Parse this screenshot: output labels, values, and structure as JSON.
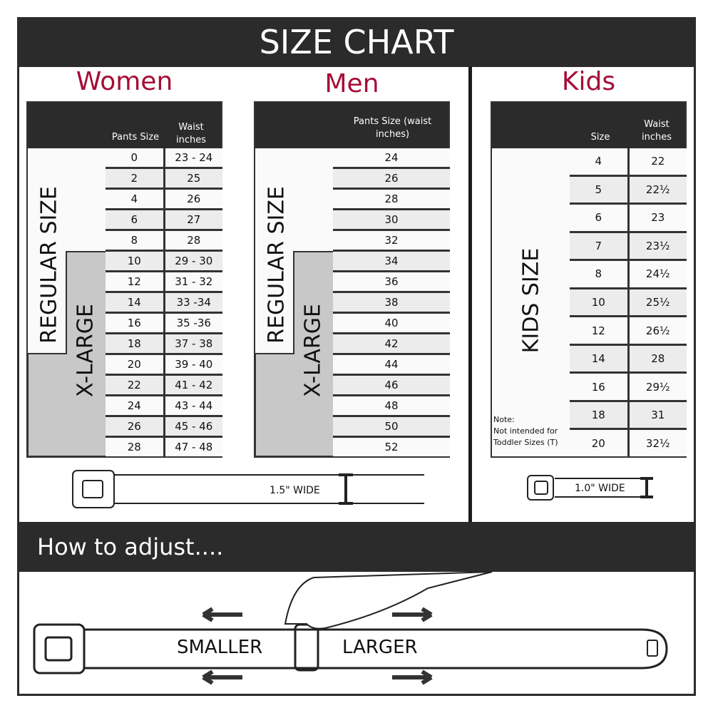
{
  "header": {
    "title": "SIZE CHART"
  },
  "women": {
    "title": "Women",
    "col_size": "Pants Size",
    "col_waist": "Waist inches",
    "regular_label": "REGULAR SIZE",
    "xlarge_label": "X-LARGE",
    "rows": [
      [
        "0",
        "23 - 24"
      ],
      [
        "2",
        "25"
      ],
      [
        "4",
        "26"
      ],
      [
        "6",
        "27"
      ],
      [
        "8",
        "28"
      ],
      [
        "10",
        "29 - 30"
      ],
      [
        "12",
        "31 - 32"
      ],
      [
        "14",
        "33 -34"
      ],
      [
        "16",
        "35 -36"
      ],
      [
        "18",
        "37 - 38"
      ],
      [
        "20",
        "39 - 40"
      ],
      [
        "22",
        "41 - 42"
      ],
      [
        "24",
        "43 - 44"
      ],
      [
        "26",
        "45 - 46"
      ],
      [
        "28",
        "47 - 48"
      ]
    ],
    "belt_width": "1.5\" WIDE"
  },
  "men": {
    "title": "Men",
    "col_size": "Pants Size (waist inches)",
    "regular_label": "REGULAR SIZE",
    "xlarge_label": "X-LARGE",
    "rows": [
      "24",
      "26",
      "28",
      "30",
      "32",
      "34",
      "36",
      "38",
      "40",
      "42",
      "44",
      "46",
      "48",
      "50",
      "52"
    ]
  },
  "kids": {
    "title": "Kids",
    "col_size": "Size",
    "col_waist": "Waist inches",
    "label": "KIDS SIZE",
    "note": "Note:",
    "note_text": "Not intended for Toddler Sizes (T)",
    "rows": [
      [
        "4",
        "22"
      ],
      [
        "5",
        "22½"
      ],
      [
        "6",
        "23"
      ],
      [
        "7",
        "23½"
      ],
      [
        "8",
        "24½"
      ],
      [
        "10",
        "25½"
      ],
      [
        "12",
        "26½"
      ],
      [
        "14",
        "28"
      ],
      [
        "16",
        "29½"
      ],
      [
        "18",
        "31"
      ],
      [
        "20",
        "32½"
      ]
    ],
    "belt_width": "1.0\" WIDE"
  },
  "adjust": {
    "title": "How to adjust....",
    "smaller": "SMALLER",
    "larger": "LARGER"
  },
  "colors": {
    "title_accent": "#a50d37",
    "dark": "#2b2b2b",
    "xlarge_fill": "#c8c8c8"
  }
}
